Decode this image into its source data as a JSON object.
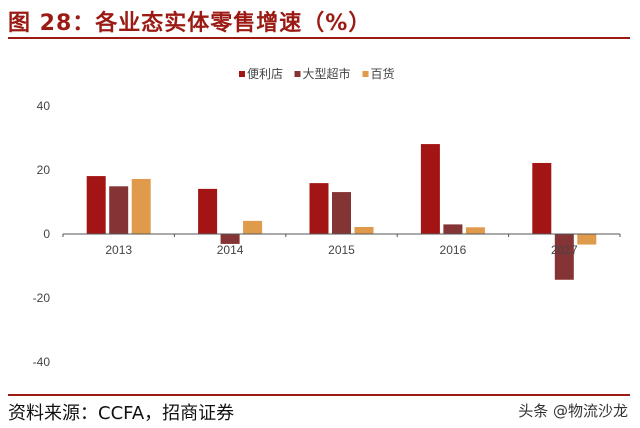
{
  "title": "图 28：各业态实体零售增速（%）",
  "source": "资料来源：CCFA，招商证券",
  "watermark": "头条 @物流沙龙",
  "chart_data": {
    "type": "bar",
    "title": "图 28：各业态实体零售增速（%）",
    "categories": [
      "2013",
      "2014",
      "2015",
      "2016",
      "2017"
    ],
    "series": [
      {
        "name": "便利店",
        "color": "#a31515",
        "values": [
          18.1,
          14.1,
          15.9,
          28.1,
          22.2
        ]
      },
      {
        "name": "大型超市",
        "color": "#843434",
        "values": [
          14.9,
          -3.1,
          13.1,
          3.0,
          -14.3
        ]
      },
      {
        "name": "百货",
        "color": "#e09a4c",
        "values": [
          17.2,
          4.1,
          2.2,
          2.1,
          -3.3
        ]
      }
    ],
    "ylim": [
      -40,
      40
    ],
    "yticks": [
      "40",
      "20",
      "0",
      "-20",
      "-40"
    ],
    "grid": false,
    "legend": "top-center"
  }
}
